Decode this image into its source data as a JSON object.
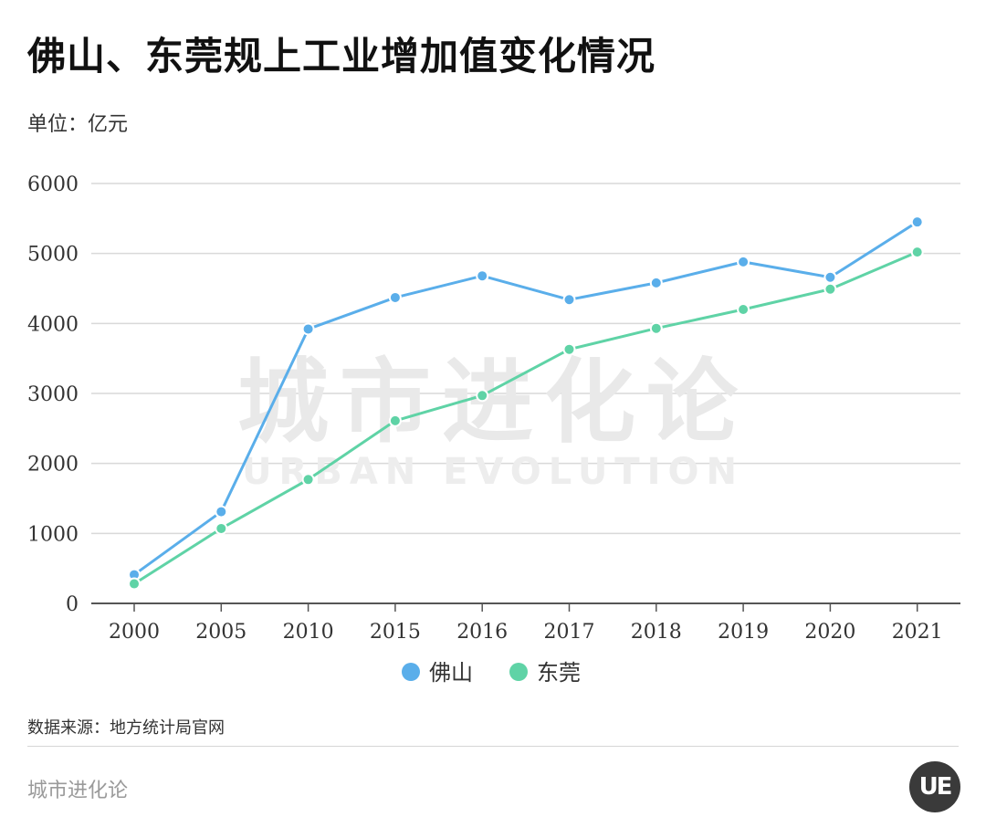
{
  "page": {
    "title": "佛山、东莞规上工业增加值变化情况",
    "unit": "单位：亿元",
    "source": "数据来源：地方统计局官网",
    "brand": "城市进化论",
    "logo_text": "UE",
    "watermark_cn": "城市进化论",
    "watermark_en": "URBAN EVOLUTION"
  },
  "chart_data": {
    "type": "line",
    "title": "佛山、东莞规上工业增加值变化情况",
    "xlabel": "",
    "ylabel": "单位：亿元",
    "categories": [
      "2000",
      "2005",
      "2010",
      "2015",
      "2016",
      "2017",
      "2018",
      "2019",
      "2020",
      "2021"
    ],
    "ylim": [
      0,
      6000
    ],
    "yticks": [
      0,
      1000,
      2000,
      3000,
      4000,
      5000,
      6000
    ],
    "grid": true,
    "legend_position": "bottom-center",
    "series": [
      {
        "name": "佛山",
        "color": "#5aaeea",
        "values": [
          410,
          1310,
          3920,
          4370,
          4680,
          4340,
          4580,
          4880,
          4660,
          5450
        ]
      },
      {
        "name": "东莞",
        "color": "#5fd3a6",
        "values": [
          280,
          1070,
          1770,
          2610,
          2970,
          3630,
          3930,
          4200,
          4490,
          5020
        ]
      }
    ]
  }
}
